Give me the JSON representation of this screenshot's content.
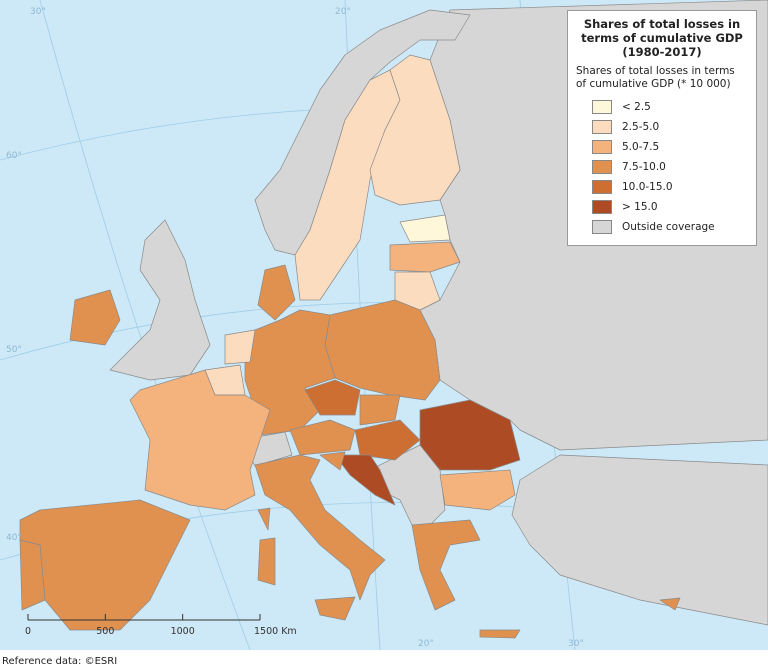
{
  "legend": {
    "title": "Shares of total losses in terms of cumulative GDP (1980-2017)",
    "subtitle": "Shares of total losses in terms of cumulative GDP (* 10 000)",
    "items": [
      {
        "label": "< 2.5",
        "color": "#fef7d9"
      },
      {
        "label": "2.5-5.0",
        "color": "#fcdcbf"
      },
      {
        "label": "5.0-7.5",
        "color": "#f4b27c"
      },
      {
        "label": "7.5-10.0",
        "color": "#e0914f"
      },
      {
        "label": "10.0-15.0",
        "color": "#cd6f33"
      },
      {
        "label": "> 15.0",
        "color": "#ad4c24"
      },
      {
        "label": "Outside coverage",
        "color": "#d6d6d6"
      }
    ]
  },
  "graticule_labels": [
    "30°",
    "20°",
    "60°",
    "50°",
    "40°",
    "20°",
    "30°"
  ],
  "scale_bar": {
    "labels": [
      "0",
      "500",
      "1000",
      "1500 Km"
    ]
  },
  "reference": "Reference data: ©ESRI"
}
